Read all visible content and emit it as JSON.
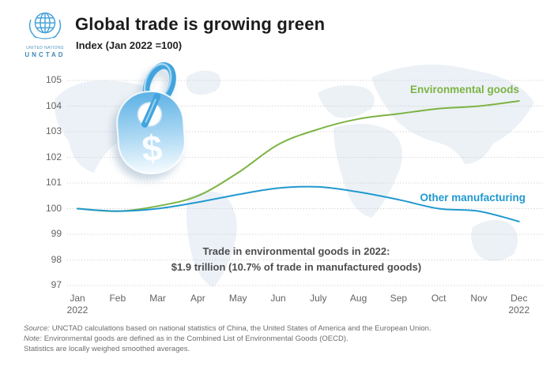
{
  "header": {
    "logo": {
      "org": "UNITED NATIONS",
      "acronym": "UNCTAD"
    },
    "title": "Global trade is growing green",
    "subtitle": "Index (Jan 2022 =100)"
  },
  "chart_data": {
    "type": "line",
    "title": "Global trade is growing green",
    "index_note": "Index (Jan 2022 =100)",
    "categories": [
      "Jan",
      "Feb",
      "Mar",
      "Apr",
      "May",
      "Jun",
      "July",
      "Aug",
      "Sep",
      "Oct",
      "Nov",
      "Dec"
    ],
    "year_label": "2022",
    "year_under_indices": [
      0,
      11
    ],
    "ylim": [
      97,
      105
    ],
    "yticks": [
      105,
      104,
      103,
      102,
      101,
      100,
      99,
      98,
      97
    ],
    "grid": "horizontal-dotted",
    "legend_position": "inline-line-labels",
    "series": [
      {
        "name": "Environmental goods",
        "color": "#7cb342",
        "values": [
          100,
          99.9,
          100.1,
          100.5,
          101.4,
          102.5,
          103.1,
          103.5,
          103.7,
          103.9,
          104.0,
          104.2
        ]
      },
      {
        "name": "Other manufacturing",
        "color": "#2199cf",
        "values": [
          100,
          99.9,
          100.0,
          100.25,
          100.55,
          100.8,
          100.85,
          100.65,
          100.35,
          100.0,
          99.9,
          99.5
        ]
      }
    ],
    "annotation": {
      "line1": "Trade in environmental goods in 2022:",
      "line2": "$1.9 trillion (10.7% of trade in manufactured goods)"
    }
  },
  "footer": {
    "source_label": "Source:",
    "source_text": "UNCTAD calculations based on national statistics of China, the United States of America and the European Union.",
    "note_label": "Note:",
    "note_text": "Environmental goods are defined as in the Combined List of Environmental Goods (OECD).",
    "note_line2": "Statistics are locally weighed smoothed averages."
  },
  "icons": {
    "un_emblem": "un-emblem-icon",
    "price_tag": "price-tag-icon",
    "dollar_sign": "$"
  }
}
